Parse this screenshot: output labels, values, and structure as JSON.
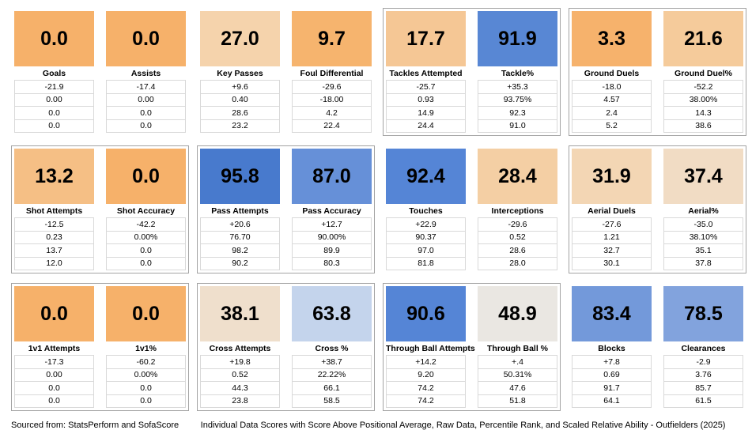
{
  "footer": {
    "left": "Sourced from: StatsPerform and SofaScore",
    "right": "Individual Data Scores with Score Above Positional Average, Raw Data, Percentile Rank, and Scaled Relative Ability - Outfielders (2025)"
  },
  "row_semantics": [
    "Score Above Positional Average",
    "Raw Data",
    "Percentile Rank",
    "Scaled Relative Ability"
  ],
  "rows": [
    {
      "groups": [
        {
          "bordered": false,
          "cards": [
            {
              "label": "Goals",
              "score": "0.0",
              "color": "#F6B16A",
              "values": [
                "-21.9",
                "0.00",
                "0.0",
                "0.0"
              ]
            },
            {
              "label": "Assists",
              "score": "0.0",
              "color": "#F6B16A",
              "values": [
                "-17.4",
                "0.00",
                "0.0",
                "0.0"
              ]
            }
          ]
        },
        {
          "bordered": false,
          "cards": [
            {
              "label": "Key Passes",
              "score": "27.0",
              "color": "#F5D3AC",
              "values": [
                "+9.6",
                "0.40",
                "28.6",
                "23.2"
              ]
            },
            {
              "label": "Foul Differential",
              "score": "9.7",
              "color": "#F6B46E",
              "values": [
                "-29.6",
                "-18.00",
                "4.2",
                "22.4"
              ]
            }
          ]
        },
        {
          "bordered": true,
          "cards": [
            {
              "label": "Tackles Attempted",
              "score": "17.7",
              "color": "#F5C795",
              "values": [
                "-25.7",
                "0.93",
                "14.9",
                "24.4"
              ]
            },
            {
              "label": "Tackle%",
              "score": "91.9",
              "color": "#5887D4",
              "values": [
                "+35.3",
                "93.75%",
                "92.3",
                "91.0"
              ]
            }
          ]
        },
        {
          "bordered": true,
          "cards": [
            {
              "label": "Ground Duels",
              "score": "3.3",
              "color": "#F6B26C",
              "values": [
                "-18.0",
                "4.57",
                "2.4",
                "5.2"
              ]
            },
            {
              "label": "Ground Duel%",
              "score": "21.6",
              "color": "#F5CB9B",
              "values": [
                "-52.2",
                "38.00%",
                "14.3",
                "38.6"
              ]
            }
          ]
        }
      ]
    },
    {
      "groups": [
        {
          "bordered": true,
          "cards": [
            {
              "label": "Shot Attempts",
              "score": "13.2",
              "color": "#F5BF85",
              "values": [
                "-12.5",
                "0.23",
                "13.7",
                "12.0"
              ]
            },
            {
              "label": "Shot Accuracy",
              "score": "0.0",
              "color": "#F6B16A",
              "values": [
                "-42.2",
                "0.00%",
                "0.0",
                "0.0"
              ]
            }
          ]
        },
        {
          "bordered": true,
          "cards": [
            {
              "label": "Pass Attempts",
              "score": "95.8",
              "color": "#487ACD",
              "values": [
                "+20.6",
                "76.70",
                "98.2",
                "90.2"
              ]
            },
            {
              "label": "Pass Accuracy",
              "score": "87.0",
              "color": "#6690D8",
              "values": [
                "+12.7",
                "90.00%",
                "89.9",
                "80.3"
              ]
            }
          ]
        },
        {
          "bordered": false,
          "cards": [
            {
              "label": "Touches",
              "score": "92.4",
              "color": "#5585D6",
              "values": [
                "+22.9",
                "90.37",
                "97.0",
                "81.8"
              ]
            },
            {
              "label": "Interceptions",
              "score": "28.4",
              "color": "#F4CFA4",
              "values": [
                "-29.6",
                "0.52",
                "28.6",
                "28.0"
              ]
            }
          ]
        },
        {
          "bordered": true,
          "cards": [
            {
              "label": "Aerial Duels",
              "score": "31.9",
              "color": "#F3D6B4",
              "values": [
                "-27.6",
                "1.21",
                "32.7",
                "30.1"
              ]
            },
            {
              "label": "Aerial%",
              "score": "37.4",
              "color": "#F1DCC4",
              "values": [
                "-35.0",
                "38.10%",
                "35.1",
                "37.8"
              ]
            }
          ]
        }
      ]
    },
    {
      "groups": [
        {
          "bordered": true,
          "cards": [
            {
              "label": "1v1 Attempts",
              "score": "0.0",
              "color": "#F6B16A",
              "values": [
                "-17.3",
                "0.00",
                "0.0",
                "0.0"
              ]
            },
            {
              "label": "1v1%",
              "score": "0.0",
              "color": "#F6B16A",
              "values": [
                "-60.2",
                "0.00%",
                "0.0",
                "0.0"
              ]
            }
          ]
        },
        {
          "bordered": true,
          "cards": [
            {
              "label": "Cross Attempts",
              "score": "38.1",
              "color": "#EFDFCC",
              "values": [
                "+19.8",
                "0.52",
                "44.3",
                "23.8"
              ]
            },
            {
              "label": "Cross %",
              "score": "63.8",
              "color": "#C4D4EC",
              "values": [
                "+38.7",
                "22.22%",
                "66.1",
                "58.5"
              ]
            }
          ]
        },
        {
          "bordered": true,
          "cards": [
            {
              "label": "Through Ball Attempts",
              "score": "90.6",
              "color": "#5585D6",
              "values": [
                "+14.2",
                "9.20",
                "74.2",
                "74.2"
              ]
            },
            {
              "label": "Through Ball %",
              "score": "48.9",
              "color": "#EAE7E2",
              "values": [
                "+.4",
                "50.31%",
                "47.6",
                "51.8"
              ]
            }
          ]
        },
        {
          "bordered": false,
          "cards": [
            {
              "label": "Blocks",
              "score": "83.4",
              "color": "#7399DA",
              "values": [
                "+7.8",
                "0.69",
                "91.7",
                "64.1"
              ]
            },
            {
              "label": "Clearances",
              "score": "78.5",
              "color": "#82A3DD",
              "values": [
                "-2.9",
                "3.76",
                "85.7",
                "61.5"
              ]
            }
          ]
        }
      ]
    }
  ],
  "chart_data": {
    "type": "table",
    "title": "Individual Data Scores with Score Above Positional Average, Raw Data, Percentile Rank, and Scaled Relative Ability - Outfielders (2025)",
    "row_labels": [
      "Individual Data Score",
      "Score Above Positional Average",
      "Raw Data",
      "Percentile Rank",
      "Scaled Relative Ability"
    ],
    "color_scale": {
      "low": "#F6B16A",
      "mid": "#EAE7E2",
      "high": "#487ACD",
      "note": "orange = low score, blue = high score"
    },
    "metrics": [
      {
        "name": "Goals",
        "score": 0.0,
        "above_avg": "-21.9",
        "raw": "0.00",
        "percentile": "0.0",
        "scaled": "0.0"
      },
      {
        "name": "Assists",
        "score": 0.0,
        "above_avg": "-17.4",
        "raw": "0.00",
        "percentile": "0.0",
        "scaled": "0.0"
      },
      {
        "name": "Key Passes",
        "score": 27.0,
        "above_avg": "+9.6",
        "raw": "0.40",
        "percentile": "28.6",
        "scaled": "23.2"
      },
      {
        "name": "Foul Differential",
        "score": 9.7,
        "above_avg": "-29.6",
        "raw": "-18.00",
        "percentile": "4.2",
        "scaled": "22.4"
      },
      {
        "name": "Tackles Attempted",
        "score": 17.7,
        "above_avg": "-25.7",
        "raw": "0.93",
        "percentile": "14.9",
        "scaled": "24.4"
      },
      {
        "name": "Tackle%",
        "score": 91.9,
        "above_avg": "+35.3",
        "raw": "93.75%",
        "percentile": "92.3",
        "scaled": "91.0"
      },
      {
        "name": "Ground Duels",
        "score": 3.3,
        "above_avg": "-18.0",
        "raw": "4.57",
        "percentile": "2.4",
        "scaled": "5.2"
      },
      {
        "name": "Ground Duel%",
        "score": 21.6,
        "above_avg": "-52.2",
        "raw": "38.00%",
        "percentile": "14.3",
        "scaled": "38.6"
      },
      {
        "name": "Shot Attempts",
        "score": 13.2,
        "above_avg": "-12.5",
        "raw": "0.23",
        "percentile": "13.7",
        "scaled": "12.0"
      },
      {
        "name": "Shot Accuracy",
        "score": 0.0,
        "above_avg": "-42.2",
        "raw": "0.00%",
        "percentile": "0.0",
        "scaled": "0.0"
      },
      {
        "name": "Pass Attempts",
        "score": 95.8,
        "above_avg": "+20.6",
        "raw": "76.70",
        "percentile": "98.2",
        "scaled": "90.2"
      },
      {
        "name": "Pass Accuracy",
        "score": 87.0,
        "above_avg": "+12.7",
        "raw": "90.00%",
        "percentile": "89.9",
        "scaled": "80.3"
      },
      {
        "name": "Touches",
        "score": 92.4,
        "above_avg": "+22.9",
        "raw": "90.37",
        "percentile": "97.0",
        "scaled": "81.8"
      },
      {
        "name": "Interceptions",
        "score": 28.4,
        "above_avg": "-29.6",
        "raw": "0.52",
        "percentile": "28.6",
        "scaled": "28.0"
      },
      {
        "name": "Aerial Duels",
        "score": 31.9,
        "above_avg": "-27.6",
        "raw": "1.21",
        "percentile": "32.7",
        "scaled": "30.1"
      },
      {
        "name": "Aerial%",
        "score": 37.4,
        "above_avg": "-35.0",
        "raw": "38.10%",
        "percentile": "35.1",
        "scaled": "37.8"
      },
      {
        "name": "1v1 Attempts",
        "score": 0.0,
        "above_avg": "-17.3",
        "raw": "0.00",
        "percentile": "0.0",
        "scaled": "0.0"
      },
      {
        "name": "1v1%",
        "score": 0.0,
        "above_avg": "-60.2",
        "raw": "0.00%",
        "percentile": "0.0",
        "scaled": "0.0"
      },
      {
        "name": "Cross Attempts",
        "score": 38.1,
        "above_avg": "+19.8",
        "raw": "0.52",
        "percentile": "44.3",
        "scaled": "23.8"
      },
      {
        "name": "Cross %",
        "score": 63.8,
        "above_avg": "+38.7",
        "raw": "22.22%",
        "percentile": "66.1",
        "scaled": "58.5"
      },
      {
        "name": "Through Ball Attempts",
        "score": 90.6,
        "above_avg": "+14.2",
        "raw": "9.20",
        "percentile": "74.2",
        "scaled": "74.2"
      },
      {
        "name": "Through Ball %",
        "score": 48.9,
        "above_avg": "+.4",
        "raw": "50.31%",
        "percentile": "47.6",
        "scaled": "51.8"
      },
      {
        "name": "Blocks",
        "score": 83.4,
        "above_avg": "+7.8",
        "raw": "0.69",
        "percentile": "91.7",
        "scaled": "64.1"
      },
      {
        "name": "Clearances",
        "score": 78.5,
        "above_avg": "-2.9",
        "raw": "3.76",
        "percentile": "85.7",
        "scaled": "61.5"
      }
    ]
  }
}
